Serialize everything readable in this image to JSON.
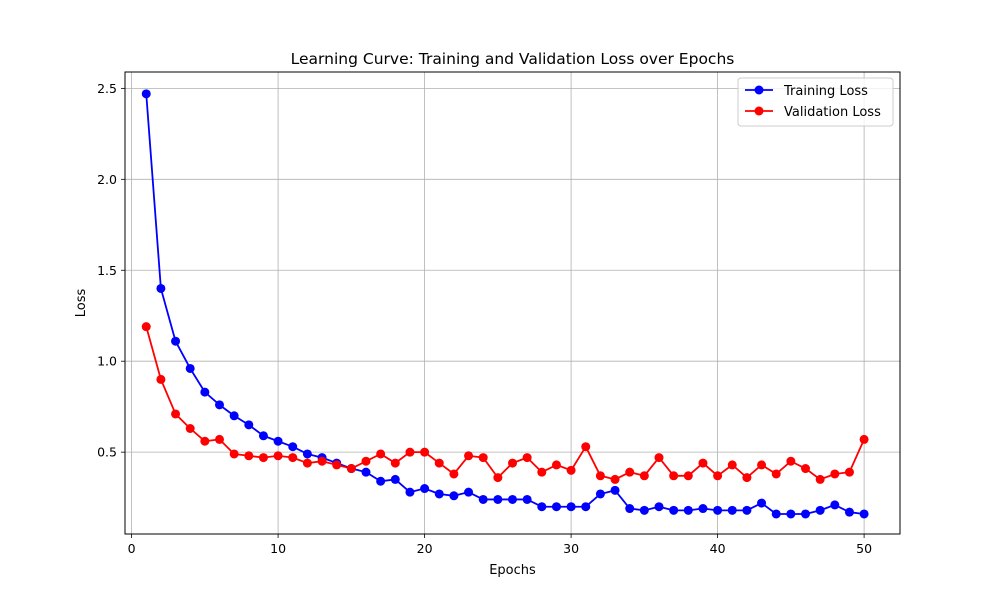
{
  "chart_data": {
    "type": "line",
    "title": "Learning Curve: Training and Validation Loss over Epochs",
    "xlabel": "Epochs",
    "ylabel": "Loss",
    "xlim": [
      -0.45,
      52.45
    ],
    "ylim": [
      0.05,
      2.59
    ],
    "xticks": [
      0,
      10,
      20,
      30,
      40,
      50
    ],
    "yticks": [
      0.5,
      1.0,
      1.5,
      2.0,
      2.5
    ],
    "xtick_labels": [
      "0",
      "10",
      "20",
      "30",
      "40",
      "50"
    ],
    "ytick_labels": [
      "0.5",
      "1.0",
      "1.5",
      "2.0",
      "2.5"
    ],
    "grid": true,
    "legend_position": "upper right",
    "x": [
      1,
      2,
      3,
      4,
      5,
      6,
      7,
      8,
      9,
      10,
      11,
      12,
      13,
      14,
      15,
      16,
      17,
      18,
      19,
      20,
      21,
      22,
      23,
      24,
      25,
      26,
      27,
      28,
      29,
      30,
      31,
      32,
      33,
      34,
      35,
      36,
      37,
      38,
      39,
      40,
      41,
      42,
      43,
      44,
      45,
      46,
      47,
      48,
      49,
      50
    ],
    "series": [
      {
        "name": "Training Loss",
        "color": "#0000ff",
        "values": [
          2.47,
          1.4,
          1.11,
          0.96,
          0.83,
          0.76,
          0.7,
          0.65,
          0.59,
          0.56,
          0.53,
          0.49,
          0.47,
          0.44,
          0.41,
          0.39,
          0.34,
          0.35,
          0.28,
          0.3,
          0.27,
          0.26,
          0.28,
          0.24,
          0.24,
          0.24,
          0.24,
          0.2,
          0.2,
          0.2,
          0.2,
          0.27,
          0.29,
          0.19,
          0.18,
          0.2,
          0.18,
          0.18,
          0.19,
          0.18,
          0.18,
          0.18,
          0.22,
          0.16,
          0.16,
          0.16,
          0.18,
          0.21,
          0.17,
          0.16
        ]
      },
      {
        "name": "Validation Loss",
        "color": "#ff0000",
        "values": [
          1.19,
          0.9,
          0.71,
          0.63,
          0.56,
          0.57,
          0.49,
          0.48,
          0.47,
          0.48,
          0.47,
          0.44,
          0.45,
          0.43,
          0.41,
          0.45,
          0.49,
          0.44,
          0.5,
          0.5,
          0.44,
          0.38,
          0.48,
          0.47,
          0.36,
          0.44,
          0.47,
          0.39,
          0.43,
          0.4,
          0.53,
          0.37,
          0.35,
          0.39,
          0.37,
          0.47,
          0.37,
          0.37,
          0.44,
          0.37,
          0.43,
          0.36,
          0.43,
          0.38,
          0.45,
          0.41,
          0.35,
          0.38,
          0.39,
          0.57
        ]
      }
    ]
  }
}
